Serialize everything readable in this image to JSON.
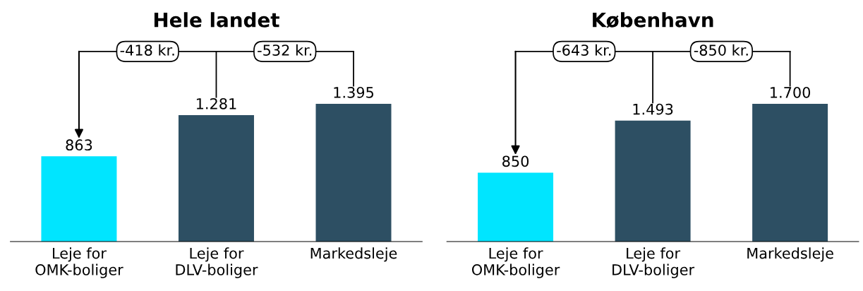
{
  "chart_data": [
    {
      "type": "bar",
      "title": "Hele landet",
      "categories": [
        "Leje for\nOMK-boliger",
        "Leje for\nDLV-boliger",
        "Markedsleje"
      ],
      "values": [
        863,
        1281,
        1395
      ],
      "colors": [
        "#00e5ff",
        "#2d4f63",
        "#2d4f63"
      ],
      "value_labels": [
        "863",
        "1.281",
        "1.395"
      ],
      "annotations": [
        "-418 kr.",
        "-532 kr."
      ],
      "grid": false,
      "legend": false
    },
    {
      "type": "bar",
      "title": "København",
      "categories": [
        "Leje for\nOMK-boliger",
        "Leje for\nDLV-boliger",
        "Markedsleje"
      ],
      "values": [
        850,
        1493,
        1700
      ],
      "colors": [
        "#00e5ff",
        "#2d4f63",
        "#2d4f63"
      ],
      "value_labels": [
        "850",
        "1.493",
        "1.700"
      ],
      "annotations": [
        "-643 kr.",
        "-850 kr."
      ],
      "grid": false,
      "legend": false
    }
  ]
}
